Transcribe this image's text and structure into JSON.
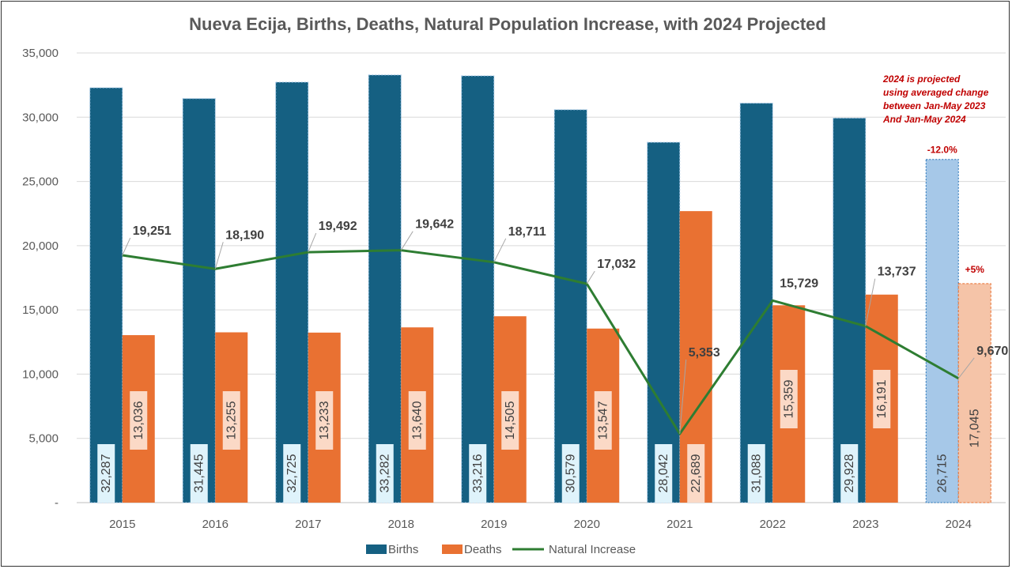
{
  "chart_data": {
    "type": "bar",
    "title": "Nueva Ecija, Births, Deaths, Natural Population Increase, with 2024 Projected",
    "categories": [
      "2015",
      "2016",
      "2017",
      "2018",
      "2019",
      "2020",
      "2021",
      "2022",
      "2023",
      "2024"
    ],
    "ylim": [
      0,
      35000
    ],
    "yticks": [
      0,
      5000,
      10000,
      15000,
      20000,
      25000,
      30000,
      35000
    ],
    "ytick_labels": [
      "-",
      "5,000",
      "10,000",
      "15,000",
      "20,000",
      "25,000",
      "30,000",
      "35,000"
    ],
    "series": [
      {
        "name": "Births",
        "kind": "bar",
        "color": "#156082",
        "projected_color": "#a6c8e8",
        "values": [
          32287,
          31445,
          32725,
          33282,
          33216,
          30579,
          28042,
          31088,
          29928,
          26715
        ],
        "labels": [
          "32,287",
          "31,445",
          "32,725",
          "33,282",
          "33,216",
          "30,579",
          "28,042",
          "31,088",
          "29,928",
          "26,715"
        ]
      },
      {
        "name": "Deaths",
        "kind": "bar",
        "color": "#e97132",
        "projected_color": "#f5c4a8",
        "values": [
          13036,
          13255,
          13233,
          13640,
          14505,
          13547,
          22689,
          15359,
          16191,
          17045
        ],
        "labels": [
          "13,036",
          "13,255",
          "13,233",
          "13,640",
          "14,505",
          "13,547",
          "22,689",
          "15,359",
          "16,191",
          "17,045"
        ]
      },
      {
        "name": "Natural Increase",
        "kind": "line",
        "color": "#2e7d32",
        "values": [
          19251,
          18190,
          19492,
          19642,
          18711,
          17032,
          5353,
          15729,
          13737,
          9670
        ],
        "labels": [
          "19,251",
          "18,190",
          "19,492",
          "19,642",
          "18,711",
          "17,032",
          "5,353",
          "15,729",
          "13,737",
          "9,670"
        ]
      }
    ],
    "projected_category": "2024",
    "annotations": {
      "births_change": "-12.0%",
      "deaths_change": "+5%",
      "note_lines": [
        "2024 is projected",
        "using averaged change",
        "between Jan-May 2023",
        "And Jan-May  2024"
      ]
    },
    "legend_position": "bottom",
    "grid": true
  }
}
